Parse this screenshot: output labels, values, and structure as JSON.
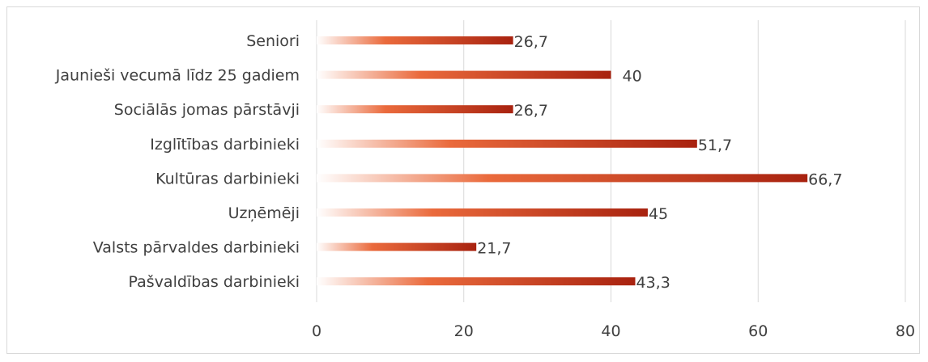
{
  "chart_data": {
    "type": "bar",
    "orientation": "horizontal",
    "categories": [
      "Seniori ",
      "Jaunieši vecumā līdz 25 gadiem",
      "Sociālās jomas pārstāvji",
      "Izglītības darbinieki",
      "Kultūras darbinieki",
      "Uzņēmēji",
      "Valsts pārvaldes darbinieki",
      "Pašvaldības darbinieki"
    ],
    "values": [
      26.7,
      40,
      26.7,
      51.7,
      66.7,
      45,
      21.7,
      43.3
    ],
    "value_labels": [
      "26,7",
      "40",
      "26,7",
      "51,7",
      "66,7",
      "45",
      "21,7",
      "43,3"
    ],
    "xlim": [
      0,
      80
    ],
    "xticks": [
      0,
      20,
      40,
      60,
      80
    ],
    "xtick_labels": [
      "0",
      "20",
      "40",
      "60",
      "80"
    ],
    "grid": true,
    "legend": "none",
    "colors": {
      "bar_start": "#ffffff",
      "bar_mid": "#ea6a3c",
      "bar_end": "#a8220f",
      "gridline": "#d9d9d9",
      "text": "#404040"
    }
  }
}
